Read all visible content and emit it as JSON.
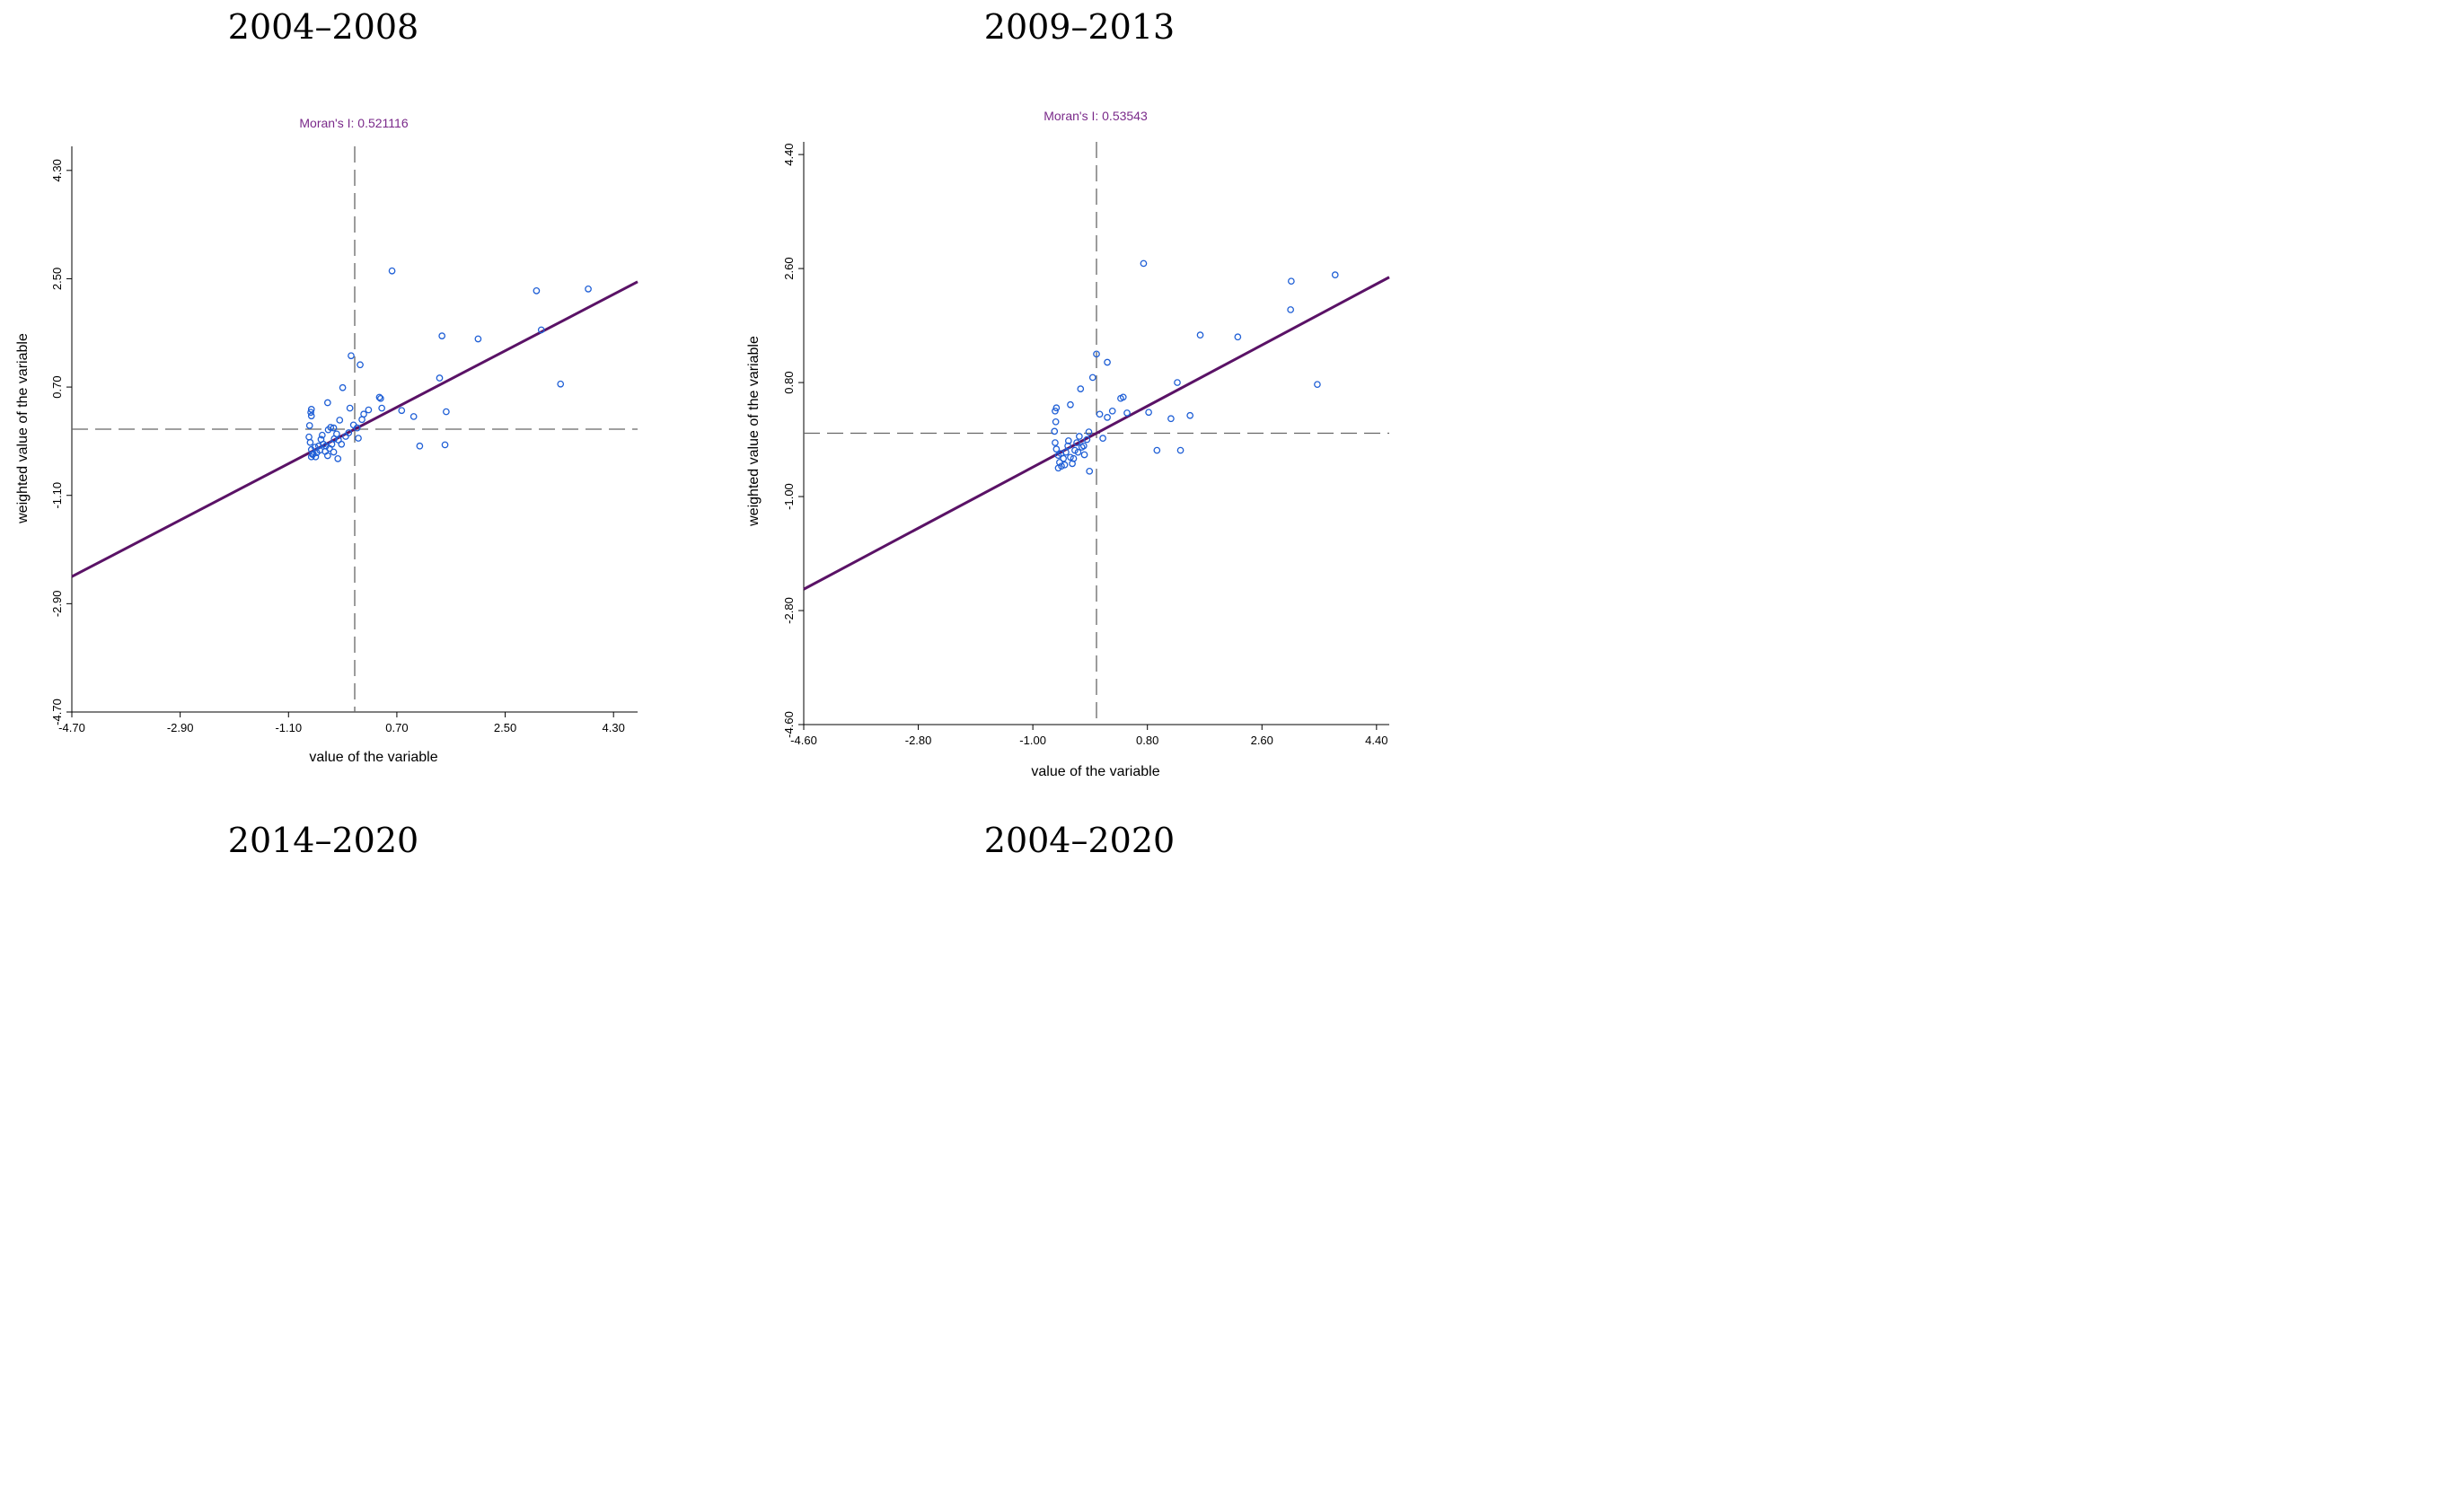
{
  "periods": {
    "top_left": "2004–2008",
    "top_right": "2009–2013",
    "bottom_left": "2014–2020",
    "bottom_right": "2004–2020"
  },
  "colors": {
    "points": "#1f5fd6",
    "fit_line": "#5a1266",
    "title": "#7a2a8a",
    "guide": "#666666"
  },
  "chart_data": [
    {
      "type": "scatter",
      "title": "Moran's I: 0.521116",
      "xlabel": "value of the variable",
      "ylabel": "weighted value of the variable",
      "xlim": [
        -4.7,
        4.7
      ],
      "ylim": [
        -4.7,
        4.7
      ],
      "xticks": [
        "-4.70",
        "-2.90",
        "-1.10",
        "0.70",
        "2.50",
        "4.30"
      ],
      "yticks": [
        "-4.70",
        "-2.90",
        "-1.10",
        "0.70",
        "2.50",
        "4.30"
      ],
      "fit_line": {
        "slope": 0.521116,
        "intercept": 0.0
      },
      "points": [
        [
          -0.72,
          0.33
        ],
        [
          -0.73,
          0.28
        ],
        [
          -0.72,
          0.22
        ],
        [
          -0.75,
          0.06
        ],
        [
          -0.76,
          -0.13
        ],
        [
          -0.74,
          -0.22
        ],
        [
          -0.72,
          -0.34
        ],
        [
          -0.69,
          -0.41
        ],
        [
          -0.65,
          -0.46
        ],
        [
          -0.72,
          -0.46
        ],
        [
          -0.63,
          -0.39
        ],
        [
          -0.6,
          -0.28
        ],
        [
          -0.56,
          -0.17
        ],
        [
          -0.52,
          -0.25
        ],
        [
          -0.49,
          -0.37
        ],
        [
          -0.45,
          -0.44
        ],
        [
          -0.42,
          -0.32
        ],
        [
          -0.38,
          -0.25
        ],
        [
          -0.34,
          -0.16
        ],
        [
          -0.3,
          -0.08
        ],
        [
          -0.27,
          -0.18
        ],
        [
          -0.44,
          -0.01
        ],
        [
          -0.4,
          0.03
        ],
        [
          -0.35,
          0.02
        ],
        [
          -0.25,
          0.15
        ],
        [
          -0.28,
          -0.49
        ],
        [
          -0.22,
          -0.25
        ],
        [
          -0.15,
          -0.12
        ],
        [
          -0.1,
          -0.06
        ],
        [
          -0.45,
          0.44
        ],
        [
          -0.2,
          0.69
        ],
        [
          -0.08,
          0.35
        ],
        [
          -0.06,
          1.22
        ],
        [
          0.09,
          1.07
        ],
        [
          -0.02,
          0.07
        ],
        [
          0.04,
          0.02
        ],
        [
          0.06,
          -0.15
        ],
        [
          0.12,
          0.16
        ],
        [
          0.15,
          0.25
        ],
        [
          0.23,
          0.32
        ],
        [
          0.41,
          0.53
        ],
        [
          0.43,
          0.51
        ],
        [
          0.45,
          0.35
        ],
        [
          0.78,
          0.31
        ],
        [
          0.98,
          0.21
        ],
        [
          1.08,
          -0.28
        ],
        [
          1.41,
          0.85
        ],
        [
          1.45,
          1.55
        ],
        [
          1.5,
          -0.26
        ],
        [
          1.52,
          0.29
        ],
        [
          2.05,
          1.5
        ],
        [
          3.02,
          2.3
        ],
        [
          3.1,
          1.65
        ],
        [
          3.42,
          0.75
        ],
        [
          3.88,
          2.33
        ],
        [
          0.62,
          2.63
        ],
        [
          -0.7,
          -0.42
        ],
        [
          -0.66,
          -0.3
        ],
        [
          -0.58,
          -0.35
        ],
        [
          -0.54,
          -0.1
        ],
        [
          -0.48,
          -0.28
        ],
        [
          -0.35,
          -0.38
        ]
      ]
    },
    {
      "type": "scatter",
      "title": "Moran's I: 0.53543",
      "xlabel": "value of the variable",
      "ylabel": "weighted value of the variable",
      "xlim": [
        -4.6,
        4.6
      ],
      "ylim": [
        -4.6,
        4.6
      ],
      "xticks": [
        "-4.60",
        "-2.80",
        "-1.00",
        "0.80",
        "2.60",
        "4.40"
      ],
      "yticks": [
        "-4.60",
        "-2.80",
        "-1.00",
        "0.80",
        "2.60",
        "4.40"
      ],
      "fit_line": {
        "slope": 0.53543,
        "intercept": 0.0
      },
      "points": [
        [
          -0.63,
          0.4
        ],
        [
          -0.65,
          0.35
        ],
        [
          -0.64,
          0.18
        ],
        [
          -0.66,
          0.03
        ],
        [
          -0.65,
          -0.15
        ],
        [
          -0.63,
          -0.25
        ],
        [
          -0.6,
          -0.35
        ],
        [
          -0.58,
          -0.46
        ],
        [
          -0.55,
          -0.52
        ],
        [
          -0.52,
          -0.4
        ],
        [
          -0.48,
          -0.3
        ],
        [
          -0.45,
          -0.2
        ],
        [
          -0.41,
          -0.38
        ],
        [
          -0.38,
          -0.48
        ],
        [
          -0.34,
          -0.27
        ],
        [
          -0.31,
          -0.15
        ],
        [
          -0.27,
          -0.05
        ],
        [
          -0.23,
          -0.22
        ],
        [
          -0.19,
          -0.34
        ],
        [
          -0.15,
          -0.1
        ],
        [
          -0.12,
          0.02
        ],
        [
          -0.41,
          0.45
        ],
        [
          -0.25,
          0.7
        ],
        [
          -0.06,
          0.88
        ],
        [
          0.0,
          1.25
        ],
        [
          0.17,
          1.12
        ],
        [
          -0.11,
          -0.6
        ],
        [
          0.05,
          0.3
        ],
        [
          0.1,
          -0.08
        ],
        [
          0.17,
          0.25
        ],
        [
          0.25,
          0.35
        ],
        [
          0.38,
          0.55
        ],
        [
          0.42,
          0.57
        ],
        [
          0.48,
          0.32
        ],
        [
          0.82,
          0.33
        ],
        [
          0.95,
          -0.27
        ],
        [
          1.17,
          0.23
        ],
        [
          1.27,
          0.8
        ],
        [
          1.32,
          -0.27
        ],
        [
          1.47,
          0.28
        ],
        [
          1.63,
          1.55
        ],
        [
          2.22,
          1.52
        ],
        [
          3.05,
          1.95
        ],
        [
          3.06,
          2.4
        ],
        [
          3.47,
          0.77
        ],
        [
          3.75,
          2.5
        ],
        [
          0.74,
          2.68
        ],
        [
          -0.6,
          -0.55
        ],
        [
          -0.56,
          -0.32
        ],
        [
          -0.5,
          -0.5
        ],
        [
          -0.44,
          -0.12
        ],
        [
          -0.36,
          -0.4
        ],
        [
          -0.29,
          -0.3
        ],
        [
          -0.2,
          -0.2
        ]
      ]
    }
  ]
}
